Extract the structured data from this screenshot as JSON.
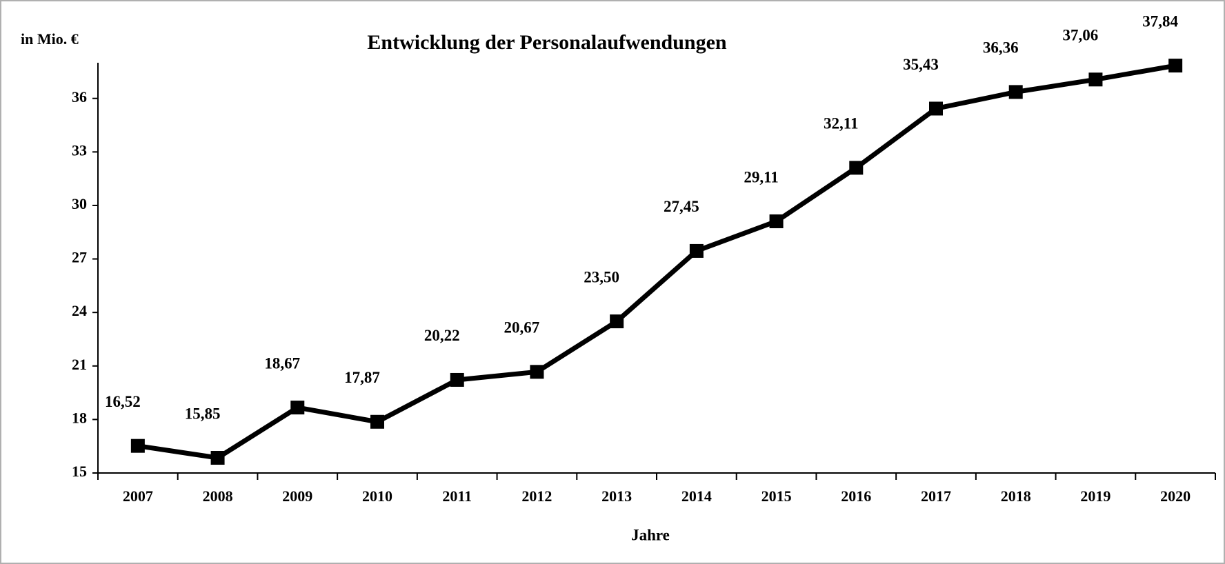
{
  "chart_data": {
    "type": "line",
    "title": "Entwicklung der Personalaufwendungen",
    "y_axis_label": "in Mio. €",
    "x_axis_label": "Jahre",
    "categories": [
      "2007",
      "2008",
      "2009",
      "2010",
      "2011",
      "2012",
      "2013",
      "2014",
      "2015",
      "2016",
      "2017",
      "2018",
      "2019",
      "2020"
    ],
    "values": [
      16.52,
      15.85,
      18.67,
      17.87,
      20.22,
      20.67,
      23.5,
      27.45,
      29.11,
      32.11,
      35.43,
      36.36,
      37.06,
      37.84
    ],
    "value_labels": [
      "16,52",
      "15,85",
      "18,67",
      "17,87",
      "20,22",
      "20,67",
      "23,50",
      "27,45",
      "29,11",
      "32,11",
      "35,43",
      "36,36",
      "37,06",
      "37,84"
    ],
    "color": "#000000",
    "ylim": [
      15,
      38
    ],
    "yticks": [
      15,
      18,
      21,
      24,
      27,
      30,
      33,
      36
    ],
    "grid": false
  }
}
